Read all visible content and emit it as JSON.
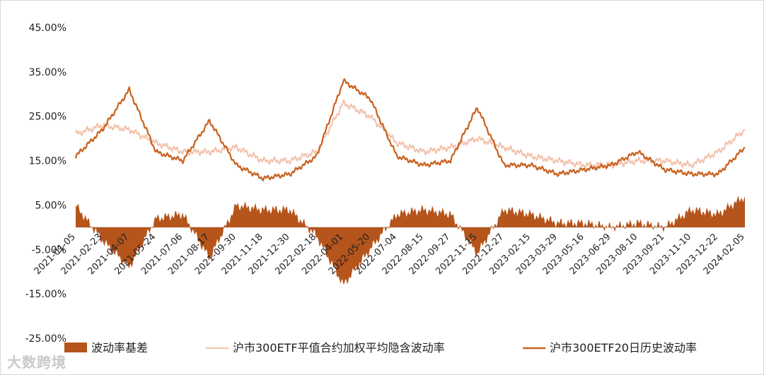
{
  "chart_data": {
    "type": "line",
    "title": "",
    "xlabel": "",
    "ylabel": "",
    "ylim": [
      -0.25,
      0.45
    ],
    "y_ticks": [
      "45.00%",
      "35.00%",
      "25.00%",
      "15.00%",
      "5.00%",
      "-5.00%",
      "-15.00%",
      "-25.00%"
    ],
    "y_tick_values": [
      0.45,
      0.35,
      0.25,
      0.15,
      0.05,
      -0.05,
      -0.15,
      -0.25
    ],
    "categories": [
      "2021-01-05",
      "2021-02-23",
      "2021-04-07",
      "2021-05-24",
      "2021-07-06",
      "2021-08-17",
      "2021-09-30",
      "2021-11-18",
      "2021-12-30",
      "2022-02-18",
      "2022-04-01",
      "2022-05-20",
      "2022-07-04",
      "2022-08-15",
      "2022-09-27",
      "2022-11-15",
      "2022-12-27",
      "2023-02-15",
      "2023-03-29",
      "2023-05-16",
      "2023-06-29",
      "2023-08-10",
      "2023-09-21",
      "2023-11-10",
      "2023-12-22",
      "2024-02-05"
    ],
    "series": [
      {
        "name": "波动率基差",
        "kind": "area",
        "color": "#b5541b",
        "values": [
          0.05,
          -0.03,
          -0.09,
          0.02,
          0.03,
          -0.07,
          0.05,
          0.04,
          0.04,
          -0.02,
          -0.13,
          -0.05,
          0.03,
          0.04,
          0.03,
          -0.06,
          0.04,
          0.03,
          0.01,
          0.01,
          0.0,
          0.01,
          0.0,
          0.04,
          0.03,
          0.07
        ]
      },
      {
        "name": "沪市300ETF平值合约加权平均隐含波动率",
        "kind": "line",
        "color": "#f2c0aa",
        "values": [
          0.21,
          0.23,
          0.22,
          0.19,
          0.17,
          0.17,
          0.18,
          0.15,
          0.15,
          0.17,
          0.28,
          0.25,
          0.19,
          0.17,
          0.18,
          0.2,
          0.18,
          0.16,
          0.15,
          0.14,
          0.14,
          0.15,
          0.15,
          0.14,
          0.17,
          0.22
        ]
      },
      {
        "name": "沪市300ETF20日历史波动率",
        "kind": "line",
        "color": "#c8621f",
        "values": [
          0.16,
          0.22,
          0.31,
          0.17,
          0.15,
          0.24,
          0.14,
          0.11,
          0.12,
          0.16,
          0.33,
          0.29,
          0.16,
          0.14,
          0.15,
          0.27,
          0.14,
          0.14,
          0.12,
          0.13,
          0.14,
          0.17,
          0.13,
          0.12,
          0.12,
          0.18
        ]
      }
    ],
    "legend": "bottom"
  },
  "watermark": "大数跨境"
}
